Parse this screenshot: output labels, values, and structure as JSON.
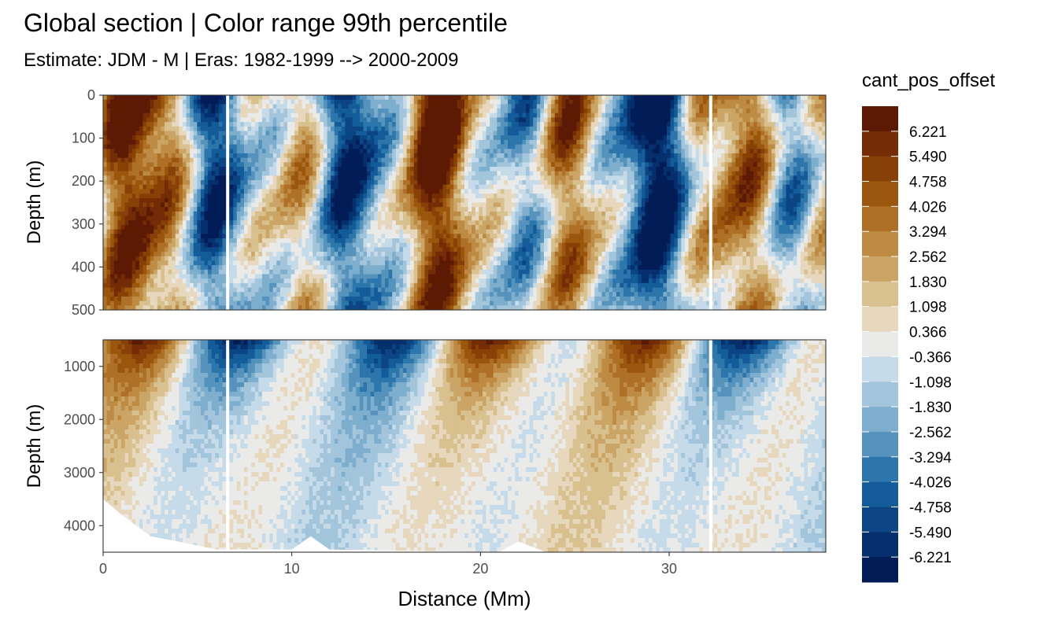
{
  "chart_data": {
    "type": "heatmap",
    "title": "Global section | Color range 99th percentile",
    "subtitle": "Estimate: JDM - M | Eras: 1982-1999 --> 2000-2009",
    "xlabel": "Distance (Mm)",
    "ylabel": "Depth (m)",
    "xlim": [
      0,
      38.3
    ],
    "x_ticks": [
      0,
      10,
      20,
      30
    ],
    "panels": [
      {
        "ylabel": "Depth (m)",
        "ylim": [
          0,
          500
        ],
        "y_ticks": [
          0,
          100,
          200,
          300,
          400,
          500
        ],
        "y_reversed": true
      },
      {
        "ylabel": "Depth (m)",
        "ylim": [
          500,
          4500
        ],
        "y_ticks": [
          1000,
          2000,
          3000,
          4000
        ],
        "y_reversed": true
      }
    ],
    "legend": {
      "title": "cant_pos_offset",
      "position": "right",
      "labels": [
        "6.221",
        "5.490",
        "4.758",
        "4.026",
        "3.294",
        "2.562",
        "1.830",
        "1.098",
        "0.366",
        "-0.366",
        "-1.098",
        "-1.830",
        "-2.562",
        "-3.294",
        "-4.026",
        "-4.758",
        "-5.490",
        "-6.221"
      ],
      "colors": [
        "#5c1a05",
        "#732c06",
        "#874106",
        "#9a560d",
        "#ad7026",
        "#bd8b43",
        "#cba566",
        "#d8c08f",
        "#e6d7bd",
        "#eaebe8",
        "#c6dbea",
        "#a3c5db",
        "#7eaecd",
        "#5693bc",
        "#2d76ab",
        "#135c99",
        "#0b4584",
        "#062f6d",
        "#021c57"
      ]
    },
    "grid": true,
    "missing_value_gaps_x": [
      6.6,
      32.2
    ]
  }
}
